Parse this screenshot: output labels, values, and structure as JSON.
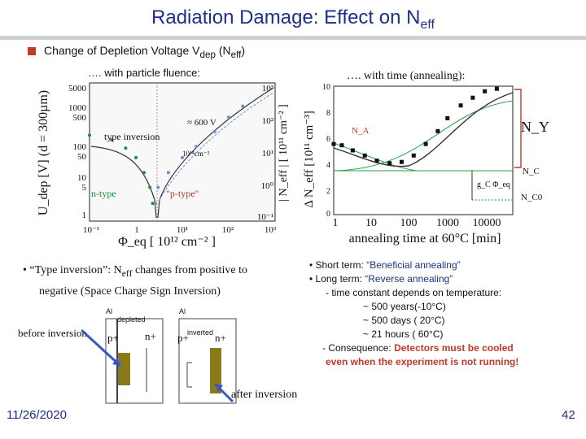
{
  "title": {
    "main": "Radiation Damage: Effect on N",
    "sub": "eff"
  },
  "subtitle": {
    "text": "Change of Depletion Voltage V",
    "dep_sub": "dep",
    "mid": " (N",
    "eff_sub": "eff",
    "close": ")"
  },
  "left_chart": {
    "heading": "…. with particle fluence:",
    "y_left_ticks": [
      "5000",
      "1000",
      "500",
      "100",
      "50",
      "10",
      "5",
      "1"
    ],
    "y_right_ticks": [
      "10³",
      "10²",
      "10¹",
      "10⁰",
      "10⁻¹"
    ],
    "x_ticks": [
      "10⁻¹",
      "1",
      "10¹",
      "10²",
      "10³"
    ],
    "y_left_label": "U_dep [V] (d = 300µm)",
    "y_right_label": "| N_eff | [ 10¹¹ cm⁻² ]",
    "x_label": "Φ_eq [ 10¹² cm⁻² ]",
    "annotations": [
      "≈ 600 V",
      "type inversion",
      "10¹⁴cm⁻²",
      "n-type",
      "\"p-type\""
    ]
  },
  "right_chart": {
    "heading": "…. with time (annealing):",
    "y_ticks": [
      "10",
      "8",
      "6",
      "4",
      "2",
      "0"
    ],
    "x_ticks": [
      "1",
      "10",
      "100",
      "1000",
      "10000"
    ],
    "y_label": "Δ N_eff [10¹¹ cm⁻³]",
    "x_label": "annealing time at 60°C [min]",
    "labels": [
      "N_A",
      "N_Y",
      "N_C",
      "g_C Φ_eq",
      "N_C0"
    ]
  },
  "bullets_left": {
    "line1_a": "• “Type inversion”: N",
    "line1_sub": "eff",
    "line1_b": " changes from positive to",
    "line2": "negative (Space Charge Sign Inversion)"
  },
  "bullets_right": {
    "short_label": "• Short term: ",
    "short_value": "“Beneficial annealing”",
    "long_label": "• Long term: ",
    "long_value": "“Reverse annealing”",
    "l3": "- time constant depends on temperature:",
    "l4": "~ 500 years(-10°C)",
    "l5": "~ 500 days ( 20°C)",
    "l6": "~  21 hours ( 60°C)",
    "l7_prefix": "- Consequence: ",
    "l7_red": "Detectors must be cooled",
    "l8_red": "even when the experiment is not running!"
  },
  "diagram": {
    "before": "before inversion",
    "after": "after inversion",
    "al1": "Al",
    "al2": "Al",
    "depleted": "depleted",
    "inverted": "inverted",
    "p_plus_1": "p+",
    "n_plus_1": "n+",
    "p_plus_2": "p+",
    "n_plus_2": "n+"
  },
  "footer": {
    "date": "11/26/2020",
    "page": "42"
  },
  "chart_data": [
    {
      "type": "scatter",
      "title": "…. with particle fluence:",
      "xlabel": "Φeq [ 10^12 cm^-2 ]",
      "ylabel": "Udep [V] (d = 300µm)",
      "x_scale": "log",
      "y_scale": "log",
      "xlim": [
        0.1,
        1000
      ],
      "ylim": [
        1,
        5000
      ],
      "series": [
        {
          "name": "n-type (decreasing)",
          "x": [
            0.1,
            0.3,
            0.6,
            1.0,
            1.5,
            2.0,
            2.3
          ],
          "y": [
            200,
            150,
            90,
            50,
            20,
            8,
            3
          ]
        },
        {
          "name": "p-type (increasing)",
          "x": [
            2.6,
            3,
            5,
            10,
            20,
            50,
            100,
            200
          ],
          "y": [
            3,
            8,
            20,
            50,
            100,
            250,
            600,
            1200
          ]
        }
      ]
    },
    {
      "type": "scatter",
      "title": "…. with time (annealing):",
      "xlabel": "annealing time at 60°C [min]",
      "ylabel": "Δ Neff [10^11 cm^-3]",
      "x_scale": "log",
      "y_scale": "linear",
      "xlim": [
        1,
        30000
      ],
      "ylim": [
        0,
        10
      ],
      "series": [
        {
          "name": "data",
          "x": [
            1,
            1.6,
            3,
            6,
            12,
            25,
            50,
            100,
            200,
            400,
            700,
            1500,
            3000,
            6000,
            12000
          ],
          "y": [
            5.5,
            5.4,
            5.0,
            4.6,
            4.2,
            4.0,
            4.1,
            4.6,
            5.5,
            6.5,
            7.5,
            8.5,
            9.1,
            9.6,
            9.8
          ]
        }
      ]
    }
  ]
}
